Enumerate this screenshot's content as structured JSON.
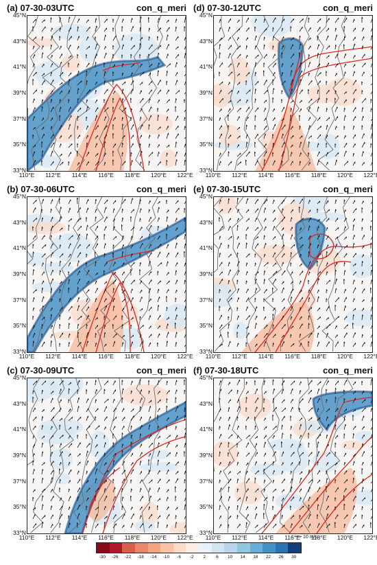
{
  "panels": [
    {
      "title": "(a) 07-30-03UTC",
      "var": "con_q_meri"
    },
    {
      "title": "(d) 07-30-12UTC",
      "var": "con_q_meri"
    },
    {
      "title": "(b) 07-30-06UTC",
      "var": "con_q_meri"
    },
    {
      "title": "(e) 07-30-15UTC",
      "var": "con_q_meri"
    },
    {
      "title": "(c) 07-30-09UTC",
      "var": "con_q_meri"
    },
    {
      "title": "(f) 07-30-18UTC",
      "var": "con_q_meri"
    }
  ],
  "lat_labels": [
    "45°N",
    "43°N",
    "41°N",
    "39°N",
    "37°N",
    "35°N",
    "33°N"
  ],
  "lon_labels": [
    "110°E",
    "112°E",
    "114°E",
    "116°E",
    "118°E",
    "120°E",
    "122°E"
  ],
  "ref_vector": "10 m/s",
  "colorbar": {
    "ticks": [
      "-30",
      "-26",
      "-22",
      "-18",
      "-14",
      "-10",
      "-6",
      "-2",
      "2",
      "6",
      "10",
      "14",
      "18",
      "22",
      "26",
      "30"
    ],
    "colors": [
      "#8b0a1a",
      "#b2182b",
      "#d6604d",
      "#e7876f",
      "#f4a582",
      "#f8c3a5",
      "#fbdcc9",
      "#fdeee4",
      "#e8f1f8",
      "#d1e5f0",
      "#b7d6ea",
      "#92c5de",
      "#6aaed6",
      "#4393c3",
      "#2c74b3",
      "#163f7a"
    ]
  }
}
